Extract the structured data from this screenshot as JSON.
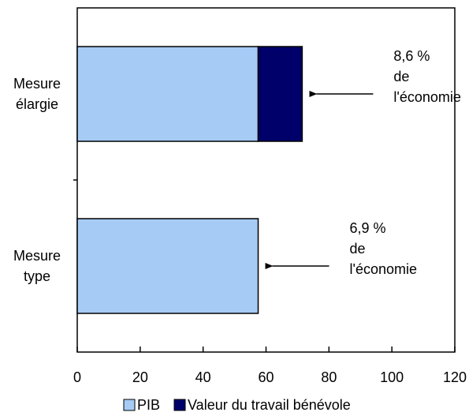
{
  "chart_data": {
    "type": "bar",
    "orientation": "horizontal",
    "stacked": true,
    "categories": [
      "Mesure élargie",
      "Mesure type"
    ],
    "category_lines": [
      [
        "Mesure",
        "élargie"
      ],
      [
        "Mesure",
        "type"
      ]
    ],
    "series": [
      {
        "name": "PIB",
        "values": [
          57.5,
          57.5
        ],
        "color": "#a6cbf5"
      },
      {
        "name": "Valeur du travail bénévole",
        "values": [
          14,
          0
        ],
        "color": "#00006b"
      }
    ],
    "xlim": [
      0,
      120
    ],
    "x_ticks": [
      0,
      20,
      40,
      60,
      80,
      100,
      120
    ],
    "x_tick_labels": [
      "0",
      "20",
      "40",
      "60",
      "80",
      "100",
      "120"
    ],
    "grid": false,
    "legend_position": "bottom",
    "annotations": [
      {
        "category": "Mesure élargie",
        "lines": [
          "8,6 %",
          "de",
          "l'économie"
        ],
        "arrow": true
      },
      {
        "category": "Mesure type",
        "lines": [
          "6,9 %",
          "de",
          "l'économie"
        ],
        "arrow": true
      }
    ],
    "xlabel": "",
    "ylabel": "",
    "title": ""
  }
}
